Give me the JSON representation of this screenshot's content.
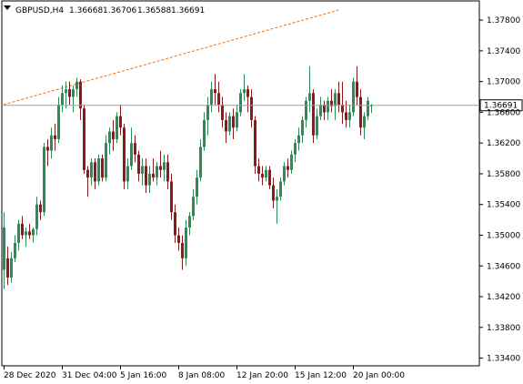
{
  "header": {
    "symbol": "GBPUSD,H4",
    "open": "1.36668",
    "high": "1.36706",
    "low": "1.36588",
    "close": "1.36691"
  },
  "colors": {
    "bull": "#2e8b57",
    "bear": "#8b1a1a",
    "trendline": "#ff6a00",
    "price_line": "#8aa0b8",
    "price_label_bg": "#ffffff",
    "axis": "#000000"
  },
  "icons": {
    "dropdown": "triangle-down-icon"
  },
  "chart_data": {
    "type": "candlestick",
    "symbol": "GBPUSD",
    "timeframe": "H4",
    "current_price": "1.36691",
    "ylim": [
      1.333,
      1.3805
    ],
    "y_ticks": [
      "1.37800",
      "1.37400",
      "1.37000",
      "1.36600",
      "1.36200",
      "1.35800",
      "1.35400",
      "1.35000",
      "1.34600",
      "1.34200",
      "1.33800",
      "1.33400"
    ],
    "x_ticks": [
      {
        "label": "28 Dec 2020",
        "index": 0
      },
      {
        "label": "31 Dec 04:00",
        "index": 16
      },
      {
        "label": "5 Jan 16:00",
        "index": 32
      },
      {
        "label": "8 Jan 08:00",
        "index": 48
      },
      {
        "label": "12 Jan 20:00",
        "index": 64
      },
      {
        "label": "15 Jan 12:00",
        "index": 80
      },
      {
        "label": "20 Jan 00:00",
        "index": 96
      }
    ],
    "trendline": {
      "from": {
        "index": 0,
        "price": 1.367
      },
      "to": {
        "index": 92,
        "price": 1.3793
      }
    },
    "candles": [
      [
        1.3455,
        1.353,
        1.343,
        1.351
      ],
      [
        1.347,
        1.3485,
        1.3435,
        1.3445
      ],
      [
        1.3445,
        1.3478,
        1.3438,
        1.347
      ],
      [
        1.347,
        1.35,
        1.3465,
        1.349
      ],
      [
        1.349,
        1.352,
        1.348,
        1.3515
      ],
      [
        1.3515,
        1.3525,
        1.3495,
        1.35
      ],
      [
        1.35,
        1.351,
        1.3485,
        1.3505
      ],
      [
        1.3505,
        1.3515,
        1.3495,
        1.35
      ],
      [
        1.35,
        1.351,
        1.349,
        1.3508
      ],
      [
        1.3508,
        1.355,
        1.35,
        1.354
      ],
      [
        1.354,
        1.3545,
        1.352,
        1.353
      ],
      [
        1.353,
        1.362,
        1.3525,
        1.3615
      ],
      [
        1.3615,
        1.3625,
        1.359,
        1.361
      ],
      [
        1.361,
        1.364,
        1.36,
        1.363
      ],
      [
        1.363,
        1.3645,
        1.361,
        1.3625
      ],
      [
        1.3625,
        1.368,
        1.362,
        1.367
      ],
      [
        1.367,
        1.3695,
        1.366,
        1.3685
      ],
      [
        1.3685,
        1.37,
        1.3665,
        1.369
      ],
      [
        1.369,
        1.37,
        1.367,
        1.368
      ],
      [
        1.368,
        1.3695,
        1.366,
        1.369
      ],
      [
        1.369,
        1.3705,
        1.368,
        1.37
      ],
      [
        1.37,
        1.3703,
        1.365,
        1.3665
      ],
      [
        1.3665,
        1.367,
        1.358,
        1.3585
      ],
      [
        1.3585,
        1.359,
        1.355,
        1.3575
      ],
      [
        1.3575,
        1.36,
        1.3565,
        1.3595
      ],
      [
        1.3595,
        1.36,
        1.356,
        1.357
      ],
      [
        1.357,
        1.3605,
        1.3565,
        1.36
      ],
      [
        1.36,
        1.3605,
        1.357,
        1.3575
      ],
      [
        1.3575,
        1.363,
        1.357,
        1.362
      ],
      [
        1.362,
        1.364,
        1.3605,
        1.3635
      ],
      [
        1.3635,
        1.365,
        1.361,
        1.3625
      ],
      [
        1.3625,
        1.366,
        1.362,
        1.3655
      ],
      [
        1.3655,
        1.367,
        1.363,
        1.364
      ],
      [
        1.364,
        1.3645,
        1.356,
        1.357
      ],
      [
        1.357,
        1.36,
        1.356,
        1.359
      ],
      [
        1.359,
        1.364,
        1.3585,
        1.362
      ],
      [
        1.362,
        1.363,
        1.3595,
        1.3605
      ],
      [
        1.3605,
        1.361,
        1.357,
        1.358
      ],
      [
        1.358,
        1.36,
        1.3565,
        1.359
      ],
      [
        1.359,
        1.36,
        1.3555,
        1.3565
      ],
      [
        1.3565,
        1.359,
        1.3555,
        1.358
      ],
      [
        1.358,
        1.36,
        1.357,
        1.3575
      ],
      [
        1.3575,
        1.3595,
        1.3565,
        1.359
      ],
      [
        1.359,
        1.361,
        1.3575,
        1.3585
      ],
      [
        1.3585,
        1.3605,
        1.357,
        1.3595
      ],
      [
        1.3595,
        1.3605,
        1.356,
        1.357
      ],
      [
        1.357,
        1.358,
        1.352,
        1.353
      ],
      [
        1.353,
        1.354,
        1.349,
        1.35
      ],
      [
        1.35,
        1.351,
        1.348,
        1.349
      ],
      [
        1.349,
        1.35,
        1.3455,
        1.347
      ],
      [
        1.347,
        1.352,
        1.346,
        1.351
      ],
      [
        1.351,
        1.353,
        1.35,
        1.3525
      ],
      [
        1.3525,
        1.356,
        1.352,
        1.355
      ],
      [
        1.355,
        1.3585,
        1.354,
        1.3575
      ],
      [
        1.3575,
        1.3625,
        1.357,
        1.3615
      ],
      [
        1.3615,
        1.366,
        1.361,
        1.365
      ],
      [
        1.365,
        1.368,
        1.363,
        1.367
      ],
      [
        1.367,
        1.37,
        1.366,
        1.369
      ],
      [
        1.369,
        1.371,
        1.367,
        1.3685
      ],
      [
        1.3685,
        1.37,
        1.366,
        1.367
      ],
      [
        1.367,
        1.368,
        1.364,
        1.365
      ],
      [
        1.365,
        1.366,
        1.362,
        1.3635
      ],
      [
        1.3635,
        1.366,
        1.363,
        1.3655
      ],
      [
        1.3655,
        1.3665,
        1.3625,
        1.364
      ],
      [
        1.364,
        1.367,
        1.3635,
        1.366
      ],
      [
        1.366,
        1.369,
        1.3655,
        1.3685
      ],
      [
        1.3685,
        1.371,
        1.3675,
        1.369
      ],
      [
        1.369,
        1.3695,
        1.366,
        1.368
      ],
      [
        1.368,
        1.369,
        1.364,
        1.365
      ],
      [
        1.365,
        1.3655,
        1.358,
        1.359
      ],
      [
        1.359,
        1.36,
        1.357,
        1.358
      ],
      [
        1.358,
        1.359,
        1.3565,
        1.3575
      ],
      [
        1.3575,
        1.359,
        1.357,
        1.3585
      ],
      [
        1.3585,
        1.359,
        1.356,
        1.3565
      ],
      [
        1.3565,
        1.3575,
        1.3535,
        1.3545
      ],
      [
        1.3545,
        1.356,
        1.3515,
        1.355
      ],
      [
        1.355,
        1.3575,
        1.3545,
        1.357
      ],
      [
        1.357,
        1.3595,
        1.3565,
        1.359
      ],
      [
        1.359,
        1.36,
        1.3575,
        1.3585
      ],
      [
        1.3585,
        1.361,
        1.358,
        1.3605
      ],
      [
        1.3605,
        1.3625,
        1.3595,
        1.362
      ],
      [
        1.362,
        1.364,
        1.361,
        1.363
      ],
      [
        1.363,
        1.3655,
        1.362,
        1.365
      ],
      [
        1.365,
        1.368,
        1.364,
        1.3675
      ],
      [
        1.3675,
        1.372,
        1.366,
        1.3685
      ],
      [
        1.3685,
        1.369,
        1.362,
        1.363
      ],
      [
        1.363,
        1.3665,
        1.3625,
        1.3655
      ],
      [
        1.3655,
        1.368,
        1.365,
        1.367
      ],
      [
        1.367,
        1.3675,
        1.365,
        1.366
      ],
      [
        1.366,
        1.368,
        1.365,
        1.3675
      ],
      [
        1.3675,
        1.369,
        1.366,
        1.3668
      ],
      [
        1.3668,
        1.369,
        1.365,
        1.3685
      ],
      [
        1.3685,
        1.37,
        1.366,
        1.367
      ],
      [
        1.367,
        1.37,
        1.3645,
        1.366
      ],
      [
        1.366,
        1.3675,
        1.364,
        1.365
      ],
      [
        1.365,
        1.367,
        1.364,
        1.366
      ],
      [
        1.366,
        1.3705,
        1.3655,
        1.37
      ],
      [
        1.37,
        1.372,
        1.367,
        1.368
      ],
      [
        1.368,
        1.369,
        1.363,
        1.364
      ],
      [
        1.364,
        1.366,
        1.3625,
        1.3655
      ],
      [
        1.3655,
        1.368,
        1.365,
        1.3675
      ],
      [
        1.3668,
        1.3671,
        1.3659,
        1.3669
      ]
    ]
  }
}
